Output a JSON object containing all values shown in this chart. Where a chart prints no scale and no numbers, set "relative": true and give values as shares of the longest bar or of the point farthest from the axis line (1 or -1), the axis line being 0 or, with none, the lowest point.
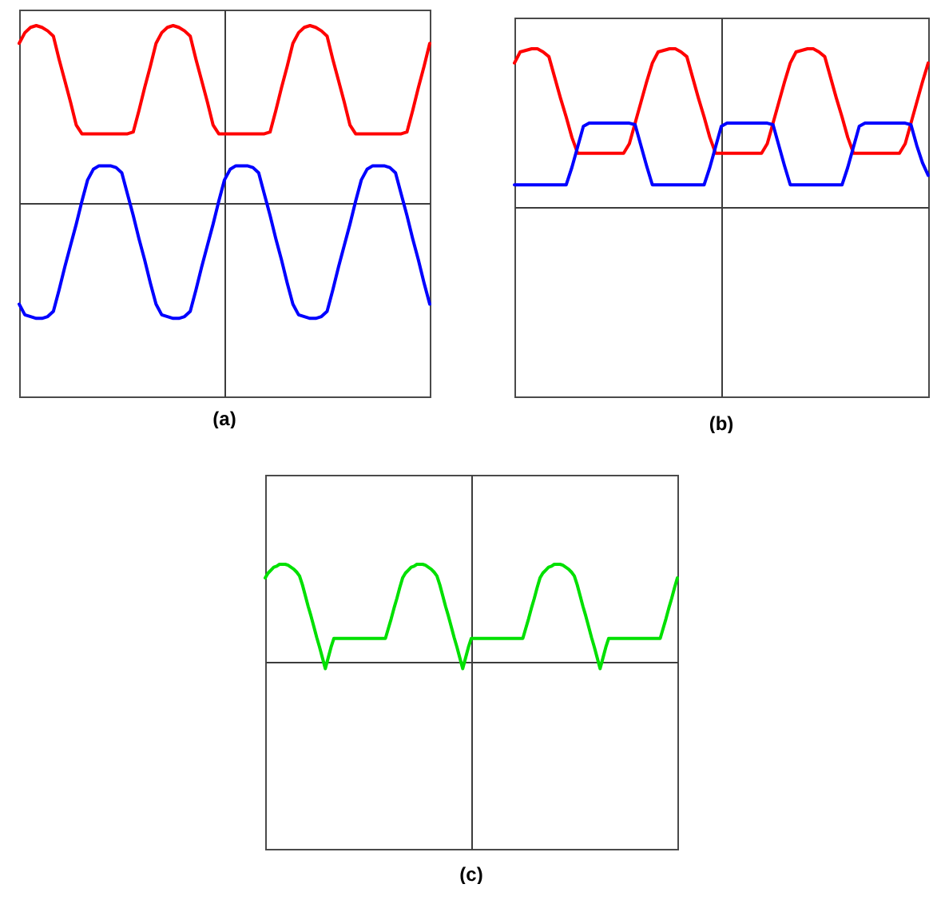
{
  "chart_data": [
    {
      "type": "line",
      "title": "(a)",
      "relative": true,
      "categories": [
        null,
        null,
        null,
        null,
        null,
        null,
        null,
        null,
        null,
        null,
        null,
        null,
        null,
        null,
        null,
        null,
        null,
        null,
        null,
        null,
        null,
        null,
        null,
        null,
        null,
        null,
        null,
        null,
        null,
        null,
        null,
        null,
        null,
        null,
        null,
        null,
        null,
        null,
        null,
        null,
        null,
        null,
        null,
        null,
        null,
        null,
        null,
        null,
        null,
        null,
        null,
        null,
        null,
        null,
        null,
        null,
        null,
        null,
        null,
        null,
        null,
        null,
        null,
        null,
        null,
        null,
        null,
        null,
        null,
        null,
        null,
        null,
        null
      ],
      "series": [
        {
          "color": "#ff0000",
          "values": [
            0.9,
            0.96,
            0.99,
            1,
            0.99,
            0.97,
            0.94,
            0.81,
            0.69,
            0.57,
            0.44,
            0.39,
            0.39,
            0.39,
            0.39,
            0.39,
            0.39,
            0.39,
            0.39,
            0.39,
            0.4,
            0.52,
            0.65,
            0.77,
            0.9,
            0.96,
            0.99,
            1,
            0.99,
            0.97,
            0.94,
            0.81,
            0.69,
            0.57,
            0.44,
            0.39,
            0.39,
            0.39,
            0.39,
            0.39,
            0.39,
            0.39,
            0.39,
            0.39,
            0.4,
            0.52,
            0.65,
            0.77,
            0.9,
            0.96,
            0.99,
            1,
            0.99,
            0.97,
            0.94,
            0.81,
            0.69,
            0.57,
            0.44,
            0.39,
            0.39,
            0.39,
            0.39,
            0.39,
            0.39,
            0.39,
            0.39,
            0.39,
            0.4,
            0.52,
            0.65,
            0.77,
            0.9
          ]
        },
        {
          "color": "#0000ff",
          "values": [
            -0.57,
            -0.63,
            -0.64,
            -0.65,
            -0.65,
            -0.64,
            -0.61,
            -0.49,
            -0.36,
            -0.24,
            -0.12,
            0.01,
            0.13,
            0.19,
            0.21,
            0.21,
            0.21,
            0.2,
            0.17,
            0.05,
            -0.07,
            -0.2,
            -0.32,
            -0.45,
            -0.57,
            -0.63,
            -0.64,
            -0.65,
            -0.65,
            -0.64,
            -0.61,
            -0.49,
            -0.36,
            -0.24,
            -0.12,
            0.01,
            0.13,
            0.19,
            0.21,
            0.21,
            0.21,
            0.2,
            0.17,
            0.05,
            -0.07,
            -0.2,
            -0.32,
            -0.45,
            -0.57,
            -0.63,
            -0.64,
            -0.65,
            -0.65,
            -0.64,
            -0.61,
            -0.49,
            -0.36,
            -0.24,
            -0.12,
            0.01,
            0.13,
            0.19,
            0.21,
            0.21,
            0.21,
            0.2,
            0.17,
            0.05,
            -0.07,
            -0.2,
            -0.32,
            -0.45,
            -0.57
          ]
        }
      ]
    },
    {
      "type": "line",
      "title": "(b)",
      "relative": true,
      "categories": [
        null,
        null,
        null,
        null,
        null,
        null,
        null,
        null,
        null,
        null,
        null,
        null,
        null,
        null,
        null,
        null,
        null,
        null,
        null,
        null,
        null,
        null,
        null,
        null,
        null,
        null,
        null,
        null,
        null,
        null,
        null,
        null,
        null,
        null,
        null,
        null,
        null,
        null,
        null,
        null,
        null,
        null,
        null,
        null,
        null,
        null,
        null,
        null,
        null,
        null,
        null,
        null,
        null,
        null,
        null,
        null,
        null,
        null,
        null,
        null,
        null,
        null,
        null,
        null,
        null,
        null,
        null,
        null,
        null,
        null,
        null,
        null,
        null
      ],
      "series": [
        {
          "color": "#ff0000",
          "values": [
            0.91,
            0.98,
            0.99,
            1,
            1,
            0.98,
            0.95,
            0.82,
            0.69,
            0.57,
            0.44,
            0.34,
            0.34,
            0.34,
            0.34,
            0.34,
            0.34,
            0.34,
            0.34,
            0.34,
            0.4,
            0.53,
            0.66,
            0.79,
            0.91,
            0.98,
            0.99,
            1,
            1,
            0.98,
            0.95,
            0.82,
            0.69,
            0.57,
            0.44,
            0.34,
            0.34,
            0.34,
            0.34,
            0.34,
            0.34,
            0.34,
            0.34,
            0.34,
            0.4,
            0.53,
            0.66,
            0.79,
            0.91,
            0.98,
            0.99,
            1,
            1,
            0.98,
            0.95,
            0.82,
            0.69,
            0.57,
            0.44,
            0.34,
            0.34,
            0.34,
            0.34,
            0.34,
            0.34,
            0.34,
            0.34,
            0.34,
            0.4,
            0.53,
            0.66,
            0.79,
            0.91
          ]
        },
        {
          "color": "#0000ff",
          "values": [
            0.14,
            0.14,
            0.14,
            0.14,
            0.14,
            0.14,
            0.14,
            0.14,
            0.14,
            0.14,
            0.25,
            0.38,
            0.51,
            0.53,
            0.53,
            0.53,
            0.53,
            0.53,
            0.53,
            0.53,
            0.53,
            0.52,
            0.39,
            0.26,
            0.14,
            0.14,
            0.14,
            0.14,
            0.14,
            0.14,
            0.14,
            0.14,
            0.14,
            0.14,
            0.25,
            0.38,
            0.51,
            0.53,
            0.53,
            0.53,
            0.53,
            0.53,
            0.53,
            0.53,
            0.53,
            0.52,
            0.39,
            0.26,
            0.14,
            0.14,
            0.14,
            0.14,
            0.14,
            0.14,
            0.14,
            0.14,
            0.14,
            0.14,
            0.25,
            0.38,
            0.51,
            0.53,
            0.53,
            0.53,
            0.53,
            0.53,
            0.53,
            0.53,
            0.53,
            0.52,
            0.39,
            0.28,
            0.2
          ]
        }
      ]
    },
    {
      "type": "line",
      "title": "(c)",
      "relative": true,
      "categories": [
        null,
        null,
        null,
        null,
        null,
        null,
        null,
        null,
        null,
        null,
        null,
        null,
        null,
        null,
        null,
        null,
        null,
        null,
        null,
        null,
        null,
        null,
        null,
        null,
        null,
        null,
        null,
        null,
        null,
        null,
        null,
        null,
        null,
        null,
        null,
        null,
        null,
        null,
        null,
        null,
        null,
        null,
        null,
        null,
        null,
        null,
        null,
        null,
        null,
        null,
        null,
        null,
        null,
        null,
        null,
        null,
        null,
        null,
        null,
        null,
        null,
        null,
        null,
        null,
        null,
        null,
        null,
        null,
        null,
        null,
        null,
        null,
        null,
        null,
        null,
        null,
        null,
        null,
        null,
        null,
        null,
        null,
        null,
        null,
        null,
        null,
        null,
        null,
        null,
        null,
        null,
        null,
        null,
        null,
        null,
        null,
        null,
        null,
        null,
        null,
        null,
        null,
        null,
        null,
        null,
        null,
        null,
        null,
        null,
        null,
        null,
        null,
        null,
        null,
        null,
        null,
        null,
        null,
        null,
        null,
        null,
        null,
        null,
        null,
        null,
        null,
        null,
        null,
        null,
        null,
        null,
        null,
        null,
        null,
        null,
        null,
        null,
        null,
        null,
        null,
        null,
        null,
        null,
        null,
        null
      ],
      "series": [
        {
          "color": "#00e000",
          "values": [
            0.86,
            0.91,
            0.94,
            0.97,
            0.98,
            1,
            1,
            1,
            0.99,
            0.97,
            0.95,
            0.92,
            0.88,
            0.79,
            0.68,
            0.57,
            0.47,
            0.36,
            0.25,
            0.15,
            0.04,
            -0.07,
            0.04,
            0.15,
            0.24,
            0.24,
            0.24,
            0.24,
            0.24,
            0.24,
            0.24,
            0.24,
            0.24,
            0.24,
            0.24,
            0.24,
            0.24,
            0.24,
            0.24,
            0.24,
            0.24,
            0.24,
            0.24,
            0.34,
            0.44,
            0.55,
            0.65,
            0.76,
            0.86,
            0.91,
            0.94,
            0.97,
            0.98,
            1,
            1,
            1,
            0.99,
            0.97,
            0.95,
            0.92,
            0.88,
            0.79,
            0.68,
            0.57,
            0.47,
            0.36,
            0.25,
            0.15,
            0.04,
            -0.07,
            0.04,
            0.15,
            0.24,
            0.24,
            0.24,
            0.24,
            0.24,
            0.24,
            0.24,
            0.24,
            0.24,
            0.24,
            0.24,
            0.24,
            0.24,
            0.24,
            0.24,
            0.24,
            0.24,
            0.24,
            0.24,
            0.34,
            0.44,
            0.55,
            0.65,
            0.76,
            0.86,
            0.91,
            0.94,
            0.97,
            0.98,
            1,
            1,
            1,
            0.99,
            0.97,
            0.95,
            0.92,
            0.88,
            0.79,
            0.68,
            0.57,
            0.47,
            0.36,
            0.25,
            0.15,
            0.04,
            -0.07,
            0.04,
            0.15,
            0.24,
            0.24,
            0.24,
            0.24,
            0.24,
            0.24,
            0.24,
            0.24,
            0.24,
            0.24,
            0.24,
            0.24,
            0.24,
            0.24,
            0.24,
            0.24,
            0.24,
            0.24,
            0.24,
            0.34,
            0.44,
            0.55,
            0.65,
            0.76,
            0.86
          ]
        }
      ]
    }
  ]
}
